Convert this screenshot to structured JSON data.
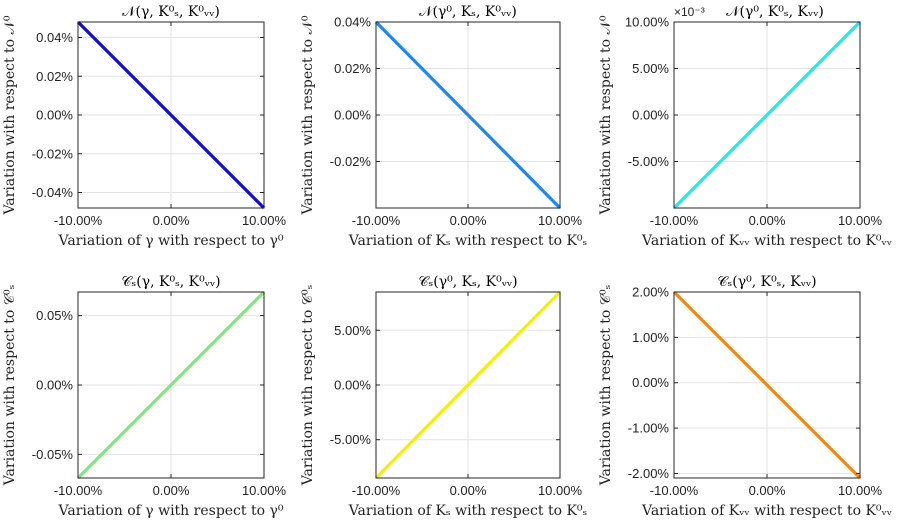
{
  "chart_data": [
    {
      "type": "line",
      "title": "𝒩(γ, K⁰ₛ, K⁰ᵥᵥ)",
      "ylabel": "Variation with respect to 𝒩⁰",
      "xlabel": "Variation of γ with respect to γ⁰",
      "x": [
        -10,
        10
      ],
      "xlim": [
        -10,
        10
      ],
      "xticks": [
        -10,
        0,
        10
      ],
      "xtick_labels": [
        "-10.00%",
        "0.00%",
        "10.00%"
      ],
      "ylim": [
        -0.048,
        0.048
      ],
      "yticks": [
        -0.04,
        -0.02,
        0,
        0.02,
        0.04
      ],
      "ytick_labels": [
        "-0.04%",
        "-0.02%",
        "0.00%",
        "0.02%",
        "0.04%"
      ],
      "series": [
        {
          "values": [
            0.048,
            -0.048
          ],
          "color": "#1010cc"
        }
      ],
      "grid": true
    },
    {
      "type": "line",
      "title": "𝒩(γ⁰, Kₛ, K⁰ᵥᵥ)",
      "ylabel": "Variation with respect to 𝒩⁰",
      "xlabel": "Variation of Kₛ with respect to K⁰ₛ",
      "x": [
        -10,
        10
      ],
      "xlim": [
        -10,
        10
      ],
      "xticks": [
        -10,
        0,
        10
      ],
      "xtick_labels": [
        "-10.00%",
        "0.00%",
        "10.00%"
      ],
      "ylim": [
        -0.04,
        0.04
      ],
      "yticks": [
        -0.02,
        0,
        0.02,
        0.04
      ],
      "ytick_labels": [
        "-0.02%",
        "0.00%",
        "0.02%",
        "0.04%"
      ],
      "series": [
        {
          "values": [
            0.04,
            -0.04
          ],
          "color": "#1e88f0"
        }
      ],
      "grid": true
    },
    {
      "type": "line",
      "title": "𝒩(γ⁰, K⁰ₛ, Kᵥᵥ)",
      "multiplier": "×10⁻³",
      "ylabel": "Variation with respect to 𝒩⁰",
      "xlabel": "Variation of Kᵥᵥ with respect to K⁰ᵥᵥ",
      "x": [
        -10,
        0,
        10
      ],
      "xlim": [
        -10,
        10
      ],
      "xticks": [
        -10,
        0,
        10
      ],
      "xtick_labels": [
        "-10.00%",
        "0.00%",
        "10.00%"
      ],
      "ylim": [
        -10,
        10
      ],
      "yticks": [
        -5,
        0,
        5,
        10
      ],
      "ytick_labels": [
        "-5.00%",
        "0.00%",
        "5.00%",
        "10.00%"
      ],
      "series": [
        {
          "values": [
            -10,
            0,
            10
          ],
          "color": "#22e8f0"
        }
      ],
      "grid": true
    },
    {
      "type": "line",
      "title": "𝒞ₛ(γ, K⁰ₛ, K⁰ᵥᵥ)",
      "ylabel": "Variation with respect to 𝒞⁰ₛ",
      "xlabel": "Variation of γ with respect to γ⁰",
      "x": [
        -10,
        10
      ],
      "xlim": [
        -10,
        10
      ],
      "xticks": [
        -10,
        0,
        10
      ],
      "xtick_labels": [
        "-10.00%",
        "0.00%",
        "10.00%"
      ],
      "ylim": [
        -0.067,
        0.067
      ],
      "yticks": [
        -0.05,
        0,
        0.05
      ],
      "ytick_labels": [
        "-0.05%",
        "0.00%",
        "0.05%"
      ],
      "series": [
        {
          "values": [
            -0.067,
            0.067
          ],
          "color": "#7ee87e"
        }
      ],
      "grid": true
    },
    {
      "type": "line",
      "title": "𝒞ₛ(γ⁰, Kₛ, K⁰ᵥᵥ)",
      "ylabel": "Variation with respect to 𝒞⁰ₛ",
      "xlabel": "Variation of Kₛ with respect to K⁰ₛ",
      "x": [
        -10,
        10
      ],
      "xlim": [
        -10,
        10
      ],
      "xticks": [
        -10,
        0,
        10
      ],
      "xtick_labels": [
        "-10.00%",
        "0.00%",
        "10.00%"
      ],
      "ylim": [
        -8.5,
        8.5
      ],
      "yticks": [
        -5,
        0,
        5
      ],
      "ytick_labels": [
        "-5.00%",
        "0.00%",
        "5.00%"
      ],
      "series": [
        {
          "values": [
            -8.5,
            8.5
          ],
          "color": "#f5f000"
        }
      ],
      "grid": true
    },
    {
      "type": "line",
      "title": "𝒞ₛ(γ⁰, K⁰ₛ, Kᵥᵥ)",
      "ylabel": "Variation with respect to 𝒞⁰ₛ",
      "xlabel": "Variation of Kᵥᵥ with respect to K⁰ᵥᵥ",
      "x": [
        -10,
        10
      ],
      "xlim": [
        -10,
        10
      ],
      "xticks": [
        -10,
        0,
        10
      ],
      "xtick_labels": [
        "-10.00%",
        "0.00%",
        "10.00%"
      ],
      "ylim": [
        -2.1,
        2.0
      ],
      "yticks": [
        -2,
        -1,
        0,
        1,
        2
      ],
      "ytick_labels": [
        "-2.00%",
        "-1.00%",
        "0.00%",
        "1.00%",
        "2.00%"
      ],
      "series": [
        {
          "values": [
            2.0,
            -2.1
          ],
          "color": "#f28a12"
        }
      ],
      "grid": true
    }
  ]
}
